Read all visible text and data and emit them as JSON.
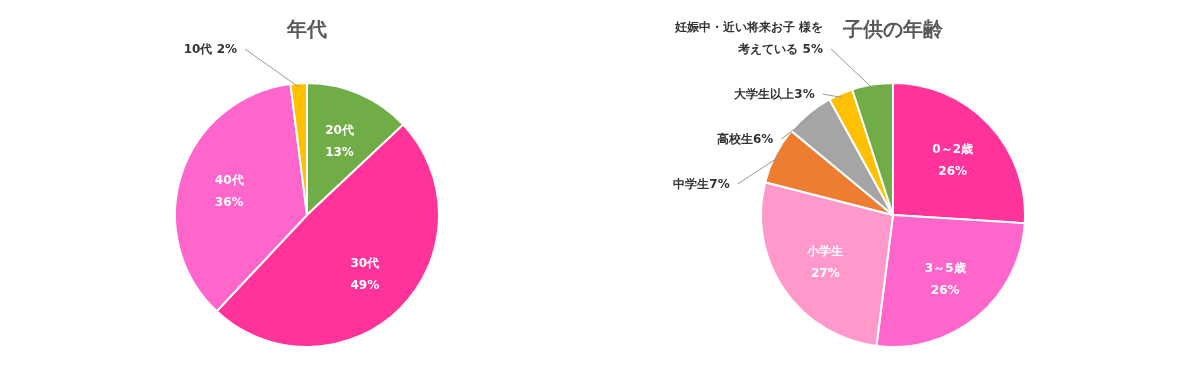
{
  "chart_data": [
    {
      "type": "pie",
      "title": "年代",
      "categories": [
        "20代",
        "30代",
        "40代",
        "10代"
      ],
      "values": [
        13,
        49,
        36,
        2
      ],
      "colors": [
        "#70ad47",
        "#ff3399",
        "#ff66cc",
        "#ffc000"
      ],
      "value_labels": [
        "13%",
        "49%",
        "36%",
        "2%"
      ]
    },
    {
      "type": "pie",
      "title": "子供の年齢",
      "categories": [
        "0～2歳",
        "3～5歳",
        "小学生",
        "中学生",
        "高校生",
        "大学生以上",
        "妊娠中・近い将来お子 様を考えている"
      ],
      "values": [
        26,
        26,
        27,
        7,
        6,
        3,
        5
      ],
      "colors": [
        "#ff3399",
        "#ff66cc",
        "#ff99cc",
        "#ed7d31",
        "#a5a5a5",
        "#ffc000",
        "#70ad47"
      ],
      "value_labels": [
        "26%",
        "26%",
        "27%",
        "7%",
        "6%",
        "3%",
        "5%"
      ]
    }
  ]
}
